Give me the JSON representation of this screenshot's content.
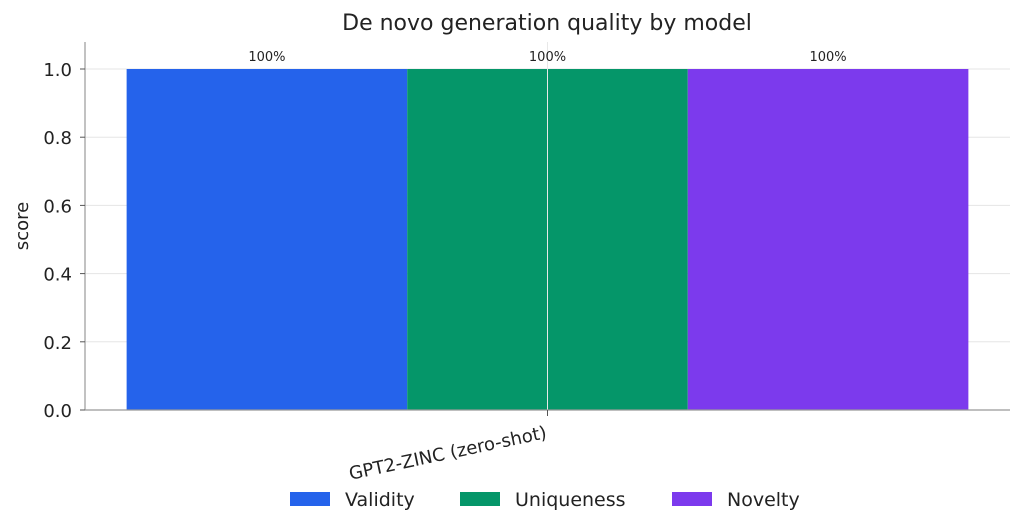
{
  "chart_data": {
    "type": "bar",
    "title": "De novo generation quality by model",
    "xlabel": "",
    "ylabel": "score",
    "categories": [
      "GPT2-ZINC (zero-shot)"
    ],
    "series": [
      {
        "name": "Validity",
        "values": [
          1.0
        ],
        "color": "#2563eb",
        "label": "100%"
      },
      {
        "name": "Uniqueness",
        "values": [
          1.0
        ],
        "color": "#059669",
        "label": "100%"
      },
      {
        "name": "Novelty",
        "values": [
          1.0
        ],
        "color": "#7c3aed",
        "label": "100%"
      }
    ],
    "ylim": [
      0,
      1.08
    ],
    "yticks": [
      "0.0",
      "0.2",
      "0.4",
      "0.6",
      "0.8",
      "1.0"
    ],
    "grid": true,
    "legend_position": "bottom"
  }
}
